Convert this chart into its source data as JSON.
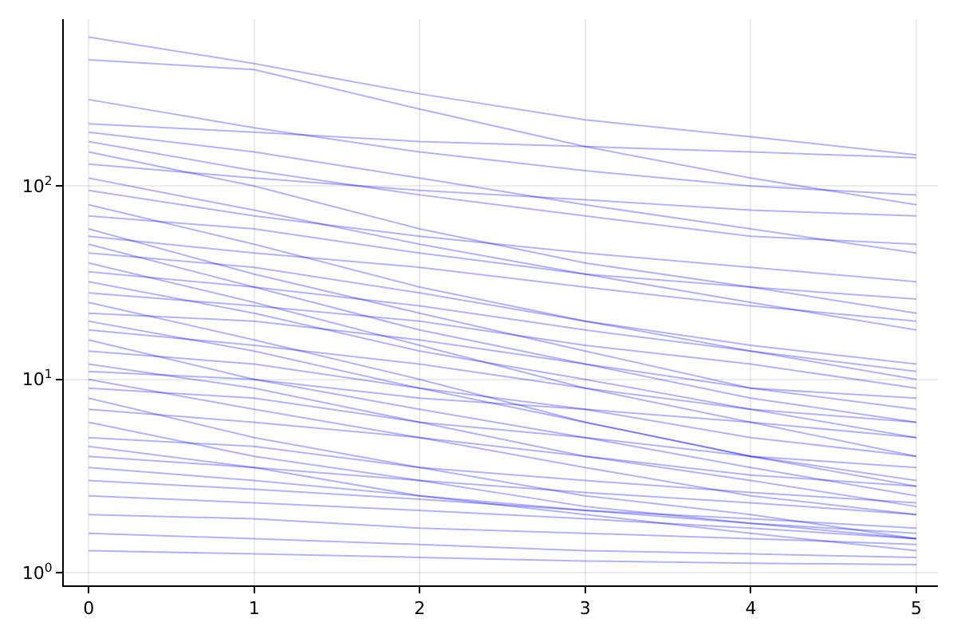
{
  "chart_data": {
    "type": "line",
    "x": [
      0,
      1,
      2,
      3,
      4,
      5
    ],
    "log": "y",
    "grid": true,
    "marker": "none",
    "line_style": "solid",
    "xlim": [
      -0.15,
      5.13
    ],
    "xticks": [
      0,
      1,
      2,
      3,
      4,
      5
    ],
    "ylim": [
      0.86,
      730
    ],
    "yticks": [
      {
        "value": 1,
        "label": "10$^{0}$"
      },
      {
        "value": 10,
        "label": "10$^{1}$"
      },
      {
        "value": 100,
        "label": "10$^{2}$"
      }
    ],
    "series": [
      {
        "color": "#0000ff",
        "values": [
          590,
          430,
          300,
          220,
          180,
          145
        ]
      },
      {
        "color": "#0000ff",
        "values": [
          450,
          400,
          250,
          160,
          110,
          80
        ]
      },
      {
        "color": "#0000ff",
        "values": [
          280,
          200,
          150,
          120,
          100,
          90
        ]
      },
      {
        "color": "#0000ff",
        "values": [
          210,
          190,
          170,
          160,
          150,
          140
        ]
      },
      {
        "color": "#0000ff",
        "values": [
          190,
          150,
          110,
          80,
          60,
          45
        ]
      },
      {
        "color": "#0000ff",
        "values": [
          170,
          120,
          90,
          70,
          55,
          50
        ]
      },
      {
        "color": "#0000ff",
        "values": [
          150,
          100,
          60,
          40,
          30,
          22
        ]
      },
      {
        "color": "#0000ff",
        "values": [
          130,
          110,
          95,
          85,
          75,
          70
        ]
      },
      {
        "color": "#0000ff",
        "values": [
          110,
          75,
          50,
          35,
          25,
          18
        ]
      },
      {
        "color": "#0000ff",
        "values": [
          95,
          70,
          55,
          45,
          38,
          32
        ]
      },
      {
        "color": "#0000ff",
        "values": [
          80,
          50,
          30,
          20,
          14,
          10
        ]
      },
      {
        "color": "#0000ff",
        "values": [
          70,
          60,
          45,
          35,
          30,
          26
        ]
      },
      {
        "color": "#0000ff",
        "values": [
          60,
          35,
          22,
          14,
          9,
          7
        ]
      },
      {
        "color": "#0000ff",
        "values": [
          55,
          45,
          38,
          30,
          24,
          20
        ]
      },
      {
        "color": "#0000ff",
        "values": [
          50,
          30,
          18,
          12,
          8,
          6
        ]
      },
      {
        "color": "#0000ff",
        "values": [
          45,
          38,
          28,
          20,
          15,
          12
        ]
      },
      {
        "color": "#0000ff",
        "values": [
          40,
          25,
          15,
          9,
          6,
          4
        ]
      },
      {
        "color": "#0000ff",
        "values": [
          36,
          30,
          24,
          18,
          14,
          11
        ]
      },
      {
        "color": "#0000ff",
        "values": [
          32,
          22,
          14,
          10,
          7,
          5
        ]
      },
      {
        "color": "#0000ff",
        "values": [
          28,
          24,
          20,
          15,
          12,
          9
        ]
      },
      {
        "color": "#0000ff",
        "values": [
          25,
          16,
          10,
          6,
          4,
          3
        ]
      },
      {
        "color": "#0000ff",
        "values": [
          22,
          20,
          16,
          12,
          9,
          8
        ]
      },
      {
        "color": "#0000ff",
        "values": [
          20,
          14,
          9,
          6,
          4,
          2.8
        ]
      },
      {
        "color": "#0000ff",
        "values": [
          18,
          15,
          12,
          9,
          7,
          6
        ]
      },
      {
        "color": "#0000ff",
        "values": [
          16,
          10,
          7,
          5,
          3.5,
          2.5
        ]
      },
      {
        "color": "#0000ff",
        "values": [
          14,
          12,
          9,
          7,
          5,
          4
        ]
      },
      {
        "color": "#0000ff",
        "values": [
          12,
          9,
          6,
          4,
          3,
          2.2
        ]
      },
      {
        "color": "#0000ff",
        "values": [
          11,
          10,
          8,
          7,
          6,
          5
        ]
      },
      {
        "color": "#0000ff",
        "values": [
          10,
          7,
          5,
          3.5,
          2.5,
          2
        ]
      },
      {
        "color": "#0000ff",
        "values": [
          9,
          8,
          6,
          5,
          4,
          3.5
        ]
      },
      {
        "color": "#0000ff",
        "values": [
          8,
          5,
          3.5,
          2.5,
          2,
          1.5
        ]
      },
      {
        "color": "#0000ff",
        "values": [
          7,
          6,
          5,
          4,
          3.2,
          2.8
        ]
      },
      {
        "color": "#0000ff",
        "values": [
          6,
          4,
          3,
          2.2,
          1.8,
          1.5
        ]
      },
      {
        "color": "#0000ff",
        "values": [
          5,
          4.5,
          3.5,
          3,
          2.6,
          2.3
        ]
      },
      {
        "color": "#0000ff",
        "values": [
          4.5,
          3.5,
          2.5,
          2,
          1.6,
          1.3
        ]
      },
      {
        "color": "#0000ff",
        "values": [
          4,
          3.5,
          3,
          2.6,
          2.3,
          2
        ]
      },
      {
        "color": "#0000ff",
        "values": [
          3.5,
          3,
          2.5,
          2.1,
          1.8,
          1.6
        ]
      },
      {
        "color": "#0000ff",
        "values": [
          3,
          2.7,
          2.4,
          2.1,
          1.9,
          1.7
        ]
      },
      {
        "color": "#0000ff",
        "values": [
          2.5,
          2.3,
          2.1,
          1.9,
          1.7,
          1.5
        ]
      },
      {
        "color": "#0000ff",
        "values": [
          2,
          1.9,
          1.7,
          1.6,
          1.5,
          1.4
        ]
      },
      {
        "color": "#0000ff",
        "values": [
          1.6,
          1.5,
          1.4,
          1.3,
          1.25,
          1.2
        ]
      },
      {
        "color": "#0000ff",
        "values": [
          1.3,
          1.25,
          1.2,
          1.15,
          1.12,
          1.1
        ]
      }
    ]
  }
}
